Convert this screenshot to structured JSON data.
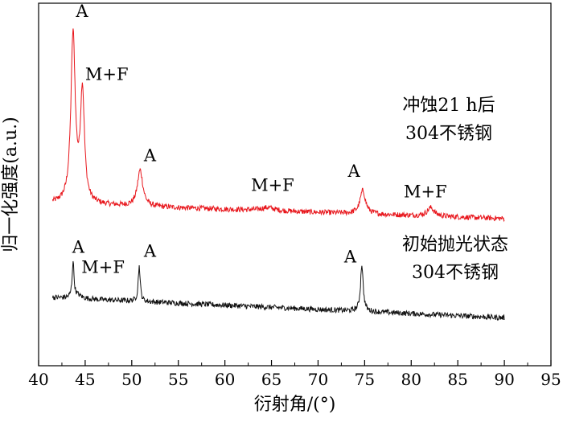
{
  "chart_data": {
    "type": "line",
    "xlabel": "衍射角/(°)",
    "ylabel": "归一化强度(a.u.)",
    "xlim": [
      40,
      95
    ],
    "x_ticks": [
      40,
      45,
      50,
      55,
      60,
      65,
      70,
      75,
      80,
      85,
      90,
      95
    ],
    "y_ticks": "none",
    "grid": false,
    "series": [
      {
        "name": "冲蚀21 h后 304不锈钢",
        "color": "#e8161c",
        "baseline": [
          [
            41.5,
            1.52
          ],
          [
            90,
            1.38
          ]
        ],
        "peaks": [
          {
            "x": 43.7,
            "height": 1.58,
            "width": 0.28
          },
          {
            "x": 44.7,
            "height": 1.04,
            "width": 0.26
          },
          {
            "x": 50.9,
            "height": 0.34,
            "width": 0.35
          },
          {
            "x": 64.6,
            "height": 0.03,
            "width": 0.9
          },
          {
            "x": 74.8,
            "height": 0.22,
            "width": 0.35
          },
          {
            "x": 82.1,
            "height": 0.08,
            "width": 0.45
          }
        ],
        "annotations": [
          {
            "text": "A",
            "x": 44.0,
            "y": 3.27
          },
          {
            "text": "M+F",
            "x": 45.0,
            "y": 2.68
          },
          {
            "text": "A",
            "x": 51.3,
            "y": 1.92
          },
          {
            "text": "M+F",
            "x": 62.8,
            "y": 1.64
          },
          {
            "text": "A",
            "x": 73.2,
            "y": 1.77
          },
          {
            "text": "M+F",
            "x": 79.2,
            "y": 1.58
          }
        ]
      },
      {
        "name": "初始抛光状态 304不锈钢",
        "color": "#111111",
        "baseline": [
          [
            41.5,
            0.64
          ],
          [
            90,
            0.45
          ]
        ],
        "peaks": [
          {
            "x": 43.7,
            "height": 0.34,
            "width": 0.12
          },
          {
            "x": 44.2,
            "height": 0.03,
            "width": 0.5
          },
          {
            "x": 50.8,
            "height": 0.33,
            "width": 0.13
          },
          {
            "x": 74.7,
            "height": 0.44,
            "width": 0.17
          }
        ],
        "annotations": [
          {
            "text": "A",
            "x": 43.6,
            "y": 1.06
          },
          {
            "text": "M+F",
            "x": 44.6,
            "y": 0.87
          },
          {
            "text": "A",
            "x": 51.3,
            "y": 1.02
          },
          {
            "text": "A",
            "x": 72.8,
            "y": 0.97
          }
        ]
      }
    ],
    "legend": [
      {
        "lines": [
          "冲蚀21 h后",
          "304不锈钢"
        ],
        "placement": "upper-right"
      },
      {
        "lines": [
          "初始抛光状态",
          "304不锈钢"
        ],
        "placement": "middle-right"
      }
    ]
  }
}
